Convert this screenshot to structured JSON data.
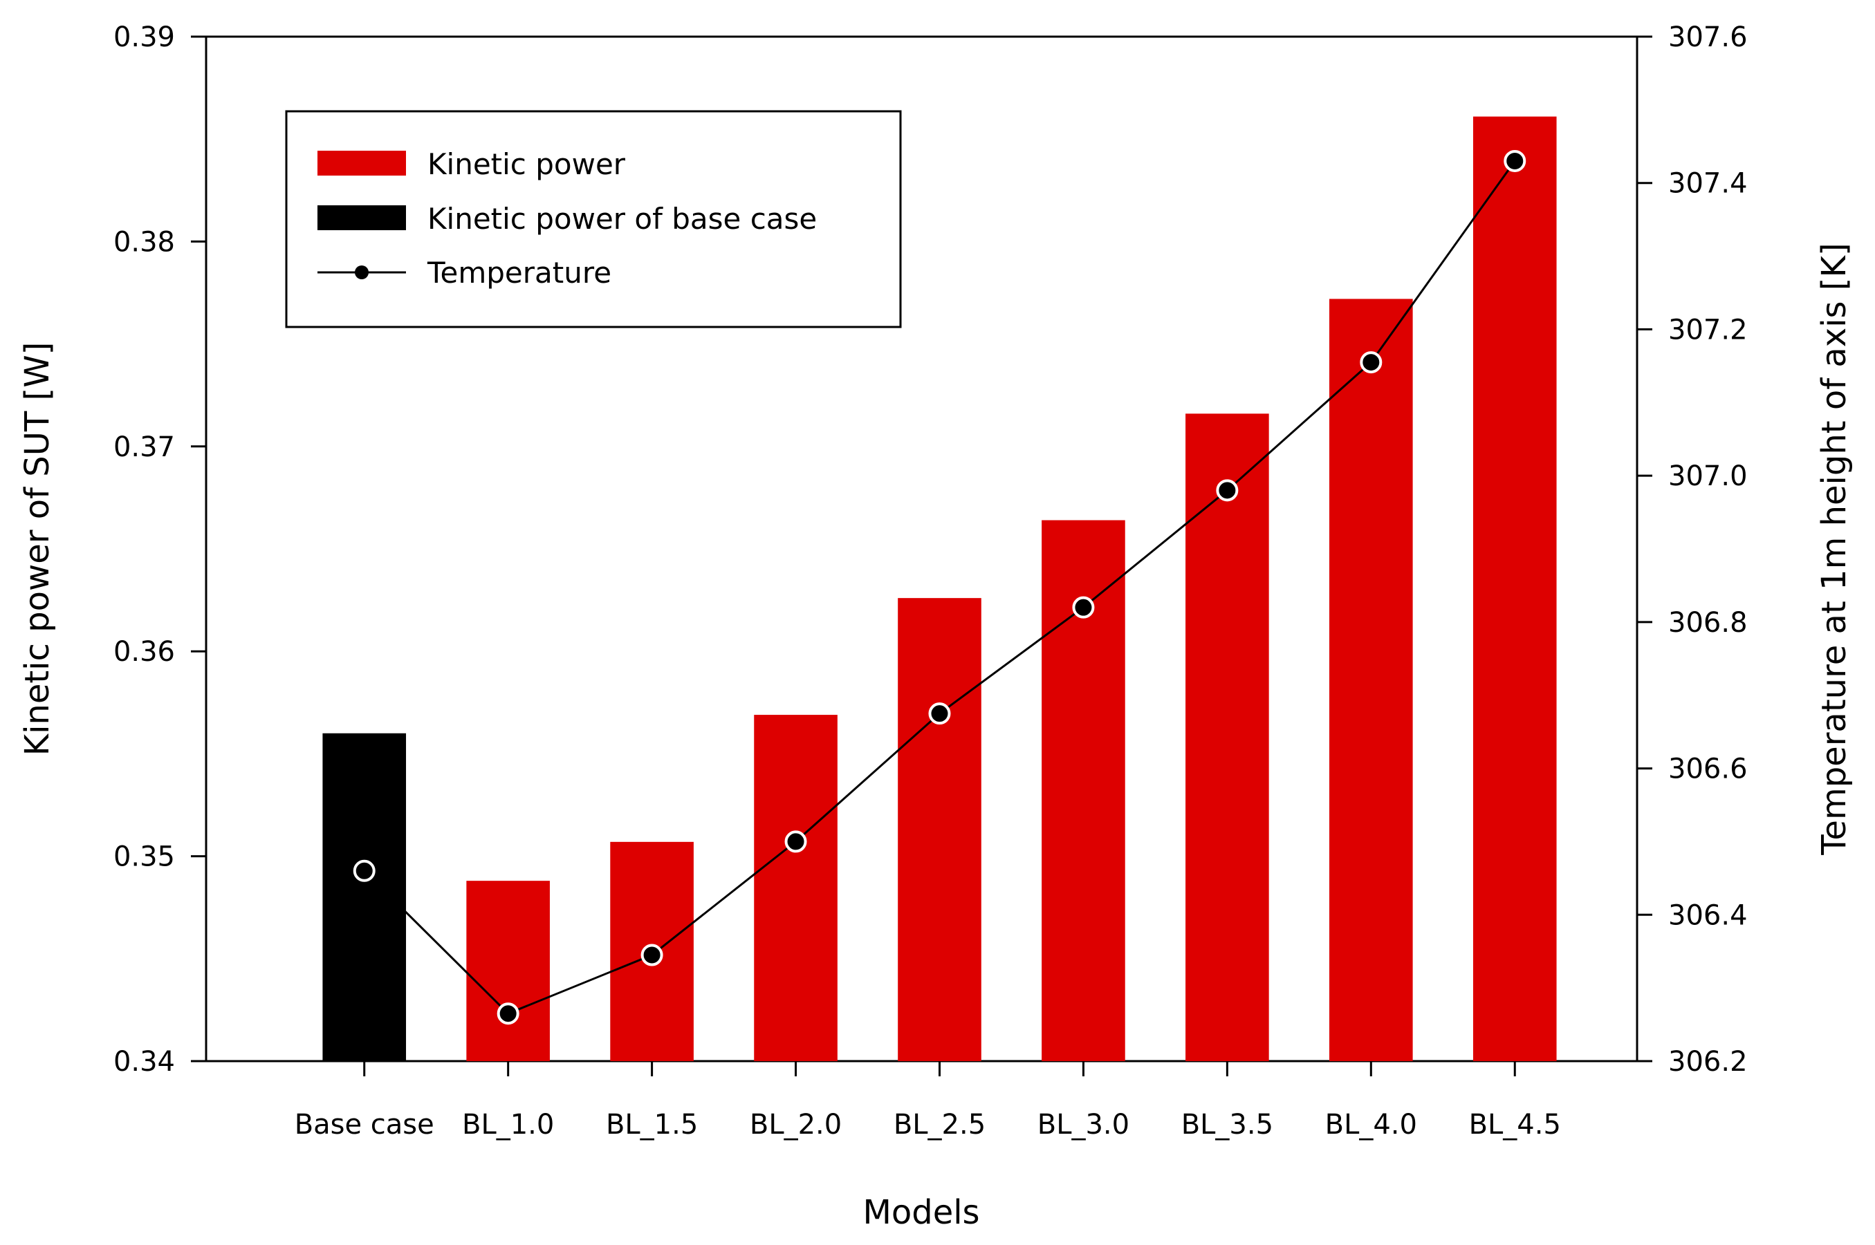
{
  "chart_data": {
    "type": "bar",
    "title": "",
    "categories": [
      "Base case",
      "BL_1.0",
      "BL_1.5",
      "BL_2.0",
      "BL_2.5",
      "BL_3.0",
      "BL_3.5",
      "BL_4.0",
      "BL_4.5"
    ],
    "xlabel": "Models",
    "ylabel": "Kinetic power of SUT [W]",
    "y2label": "Temperature at 1m height of axis [K]",
    "ylim": [
      0.34,
      0.39
    ],
    "y2lim": [
      306.2,
      307.6
    ],
    "yticks": [
      "0.34",
      "0.35",
      "0.36",
      "0.37",
      "0.38",
      "0.39"
    ],
    "y2ticks": [
      "306.2",
      "306.4",
      "306.6",
      "306.8",
      "307.0",
      "307.2",
      "307.4",
      "307.6"
    ],
    "series": [
      {
        "name": "Kinetic power",
        "kind": "bar",
        "axis": "left",
        "color": "#dd0000",
        "values": [
          null,
          0.3488,
          0.3507,
          0.3569,
          0.3626,
          0.3664,
          0.3716,
          0.3772,
          0.3861
        ]
      },
      {
        "name": "Kinetic power of base case",
        "kind": "bar",
        "axis": "left",
        "color": "#000000",
        "values": [
          0.356,
          null,
          null,
          null,
          null,
          null,
          null,
          null,
          null
        ]
      },
      {
        "name": "Temperature",
        "kind": "line",
        "axis": "right",
        "color": "#000000",
        "values": [
          306.46,
          306.265,
          306.345,
          306.5,
          306.675,
          306.82,
          306.98,
          307.155,
          307.43
        ]
      }
    ],
    "legend": {
      "position": "top-left",
      "items": [
        "Kinetic power",
        "Kinetic power of base case",
        "Temperature"
      ]
    },
    "grid": false
  }
}
